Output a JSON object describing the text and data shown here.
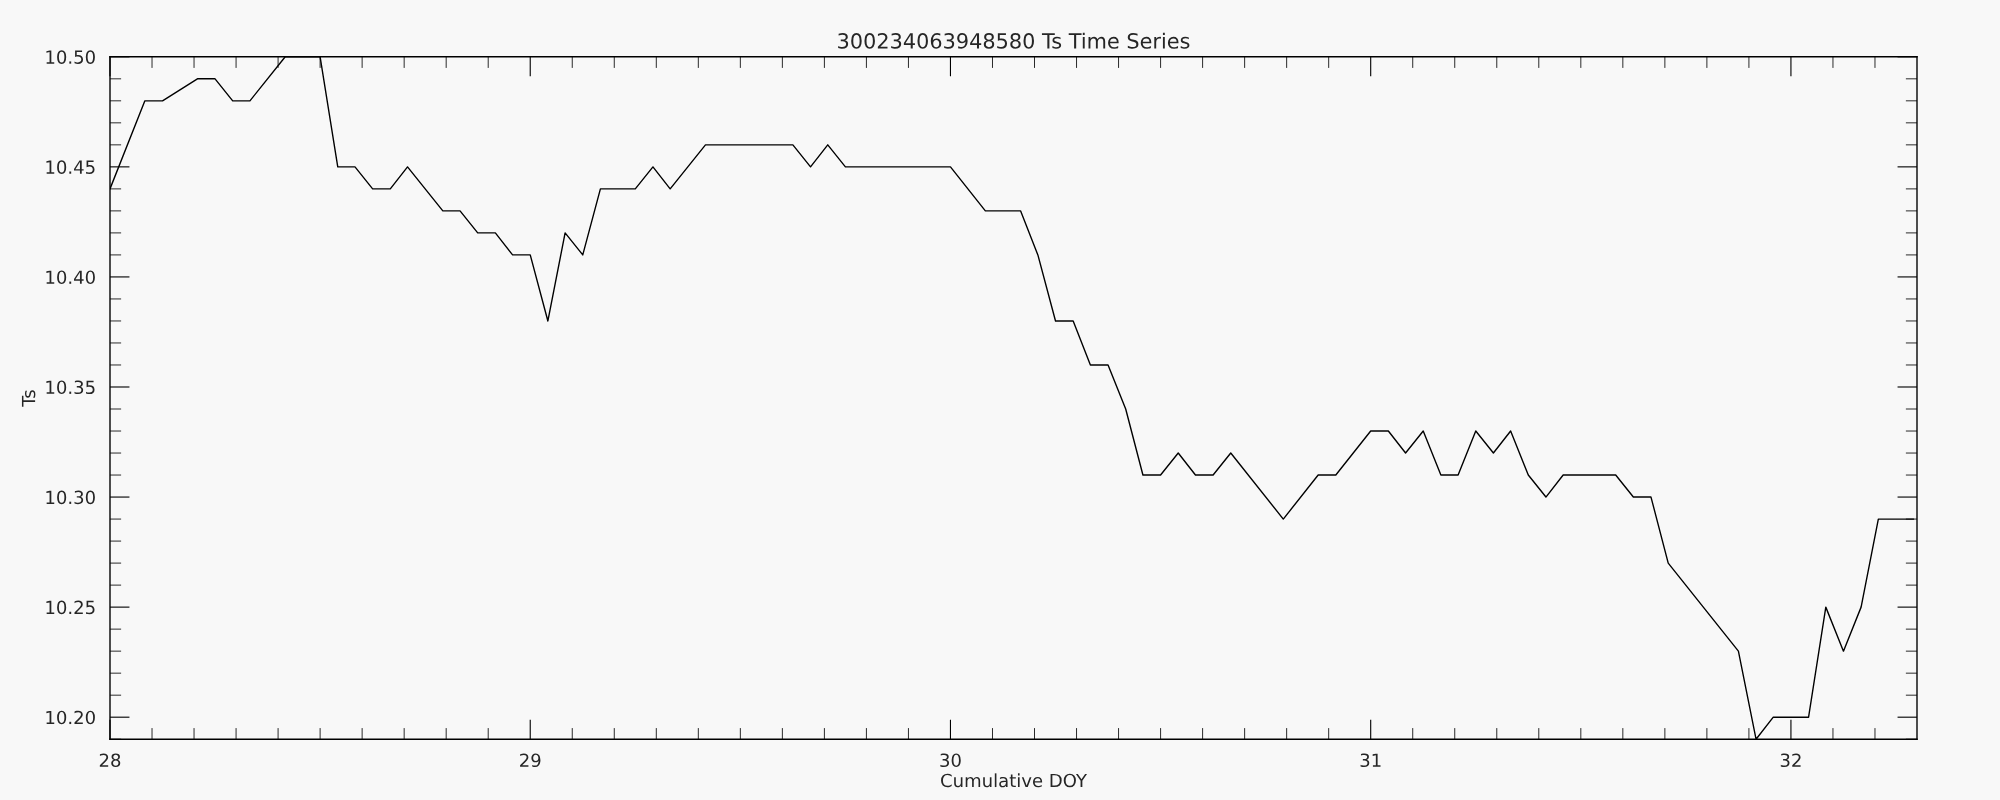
{
  "chart_data": {
    "type": "line",
    "title": "300234063948580 Ts Time Series",
    "xlabel": "Cumulative DOY",
    "ylabel": "Ts",
    "series": [
      {
        "color": "#000000",
        "x": [
          28.0,
          28.083,
          28.125,
          28.208,
          28.25,
          28.292,
          28.333,
          28.417,
          28.458,
          28.5,
          28.542,
          28.583,
          28.625,
          28.667,
          28.708,
          28.792,
          28.833,
          28.875,
          28.917,
          28.958,
          29.0,
          29.042,
          29.083,
          29.125,
          29.167,
          29.25,
          29.292,
          29.333,
          29.417,
          29.625,
          29.667,
          29.708,
          29.75,
          30.0,
          30.083,
          30.167,
          30.208,
          30.25,
          30.292,
          30.333,
          30.375,
          30.417,
          30.458,
          30.5,
          30.542,
          30.583,
          30.625,
          30.667,
          30.792,
          30.875,
          30.917,
          31.0,
          31.042,
          31.083,
          31.125,
          31.167,
          31.208,
          31.25,
          31.292,
          31.333,
          31.375,
          31.417,
          31.458,
          31.583,
          31.625,
          31.667,
          31.708,
          31.875,
          31.917,
          31.958,
          32.042,
          32.083,
          32.125,
          32.167,
          32.208,
          32.292
        ],
        "values": [
          10.44,
          10.48,
          10.48,
          10.49,
          10.49,
          10.48,
          10.48,
          10.5,
          10.5,
          10.5,
          10.45,
          10.45,
          10.44,
          10.44,
          10.45,
          10.43,
          10.43,
          10.42,
          10.42,
          10.41,
          10.41,
          10.38,
          10.42,
          10.41,
          10.44,
          10.44,
          10.45,
          10.44,
          10.46,
          10.46,
          10.45,
          10.46,
          10.45,
          10.45,
          10.43,
          10.43,
          10.41,
          10.38,
          10.38,
          10.36,
          10.36,
          10.34,
          10.31,
          10.31,
          10.32,
          10.31,
          10.31,
          10.32,
          10.29,
          10.31,
          10.31,
          10.33,
          10.33,
          10.32,
          10.33,
          10.31,
          10.31,
          10.33,
          10.32,
          10.33,
          10.31,
          10.3,
          10.31,
          10.31,
          10.3,
          10.3,
          10.27,
          10.23,
          10.19,
          10.2,
          10.2,
          10.25,
          10.23,
          10.25,
          10.29,
          10.29
        ]
      }
    ],
    "xlim": [
      28,
      32.3
    ],
    "ylim": [
      10.19,
      10.5
    ],
    "xticks": [
      28,
      {
        "value": 28.1,
        "label": null
      },
      {
        "value": 28.2,
        "label": null
      },
      {
        "value": 28.3,
        "label": null
      },
      {
        "value": 28.4,
        "label": null
      },
      {
        "value": 28.5,
        "label": null
      },
      {
        "value": 28.6,
        "label": null
      },
      {
        "value": 28.7,
        "label": null
      },
      {
        "value": 28.8,
        "label": null
      },
      {
        "value": 28.9,
        "label": null
      },
      29,
      {
        "value": 29.1,
        "label": null
      },
      {
        "value": 29.2,
        "label": null
      },
      {
        "value": 29.3,
        "label": null
      },
      {
        "value": 29.4,
        "label": null
      },
      {
        "value": 29.5,
        "label": null
      },
      {
        "value": 29.6,
        "label": null
      },
      {
        "value": 29.7,
        "label": null
      },
      {
        "value": 29.8,
        "label": null
      },
      {
        "value": 29.9,
        "label": null
      },
      30,
      {
        "value": 30.1,
        "label": null
      },
      {
        "value": 30.2,
        "label": null
      },
      {
        "value": 30.3,
        "label": null
      },
      {
        "value": 30.4,
        "label": null
      },
      {
        "value": 30.5,
        "label": null
      },
      {
        "value": 30.6,
        "label": null
      },
      {
        "value": 30.7,
        "label": null
      },
      {
        "value": 30.8,
        "label": null
      },
      {
        "value": 30.9,
        "label": null
      },
      31,
      {
        "value": 31.1,
        "label": null
      },
      {
        "value": 31.2,
        "label": null
      },
      {
        "value": 31.3,
        "label": null
      },
      {
        "value": 31.4,
        "label": null
      },
      {
        "value": 31.5,
        "label": null
      },
      {
        "value": 31.6,
        "label": null
      },
      {
        "value": 31.7,
        "label": null
      },
      {
        "value": 31.8,
        "label": null
      },
      {
        "value": 31.9,
        "label": null
      },
      32,
      {
        "value": 32.1,
        "label": null
      },
      {
        "value": 32.2,
        "label": null
      }
    ],
    "yticks": [
      {
        "value": 10.19,
        "label": null
      },
      {
        "value": 10.2,
        "label": "10.20"
      },
      {
        "value": 10.21,
        "label": null
      },
      {
        "value": 10.22,
        "label": null
      },
      {
        "value": 10.23,
        "label": null
      },
      {
        "value": 10.24,
        "label": null
      },
      {
        "value": 10.25,
        "label": "10.25"
      },
      {
        "value": 10.26,
        "label": null
      },
      {
        "value": 10.27,
        "label": null
      },
      {
        "value": 10.28,
        "label": null
      },
      {
        "value": 10.29,
        "label": null
      },
      {
        "value": 10.3,
        "label": "10.30"
      },
      {
        "value": 10.31,
        "label": null
      },
      {
        "value": 10.32,
        "label": null
      },
      {
        "value": 10.33,
        "label": null
      },
      {
        "value": 10.34,
        "label": null
      },
      {
        "value": 10.35,
        "label": "10.35"
      },
      {
        "value": 10.36,
        "label": null
      },
      {
        "value": 10.37,
        "label": null
      },
      {
        "value": 10.38,
        "label": null
      },
      {
        "value": 10.39,
        "label": null
      },
      {
        "value": 10.4,
        "label": "10.40"
      },
      {
        "value": 10.41,
        "label": null
      },
      {
        "value": 10.42,
        "label": null
      },
      {
        "value": 10.43,
        "label": null
      },
      {
        "value": 10.44,
        "label": null
      },
      {
        "value": 10.45,
        "label": "10.45"
      },
      {
        "value": 10.46,
        "label": null
      },
      {
        "value": 10.47,
        "label": null
      },
      {
        "value": 10.48,
        "label": null
      },
      {
        "value": 10.49,
        "label": null
      },
      {
        "value": 10.5,
        "label": "10.50"
      }
    ],
    "grid": false,
    "legend": false,
    "marker": "none",
    "line_style": "solid"
  }
}
